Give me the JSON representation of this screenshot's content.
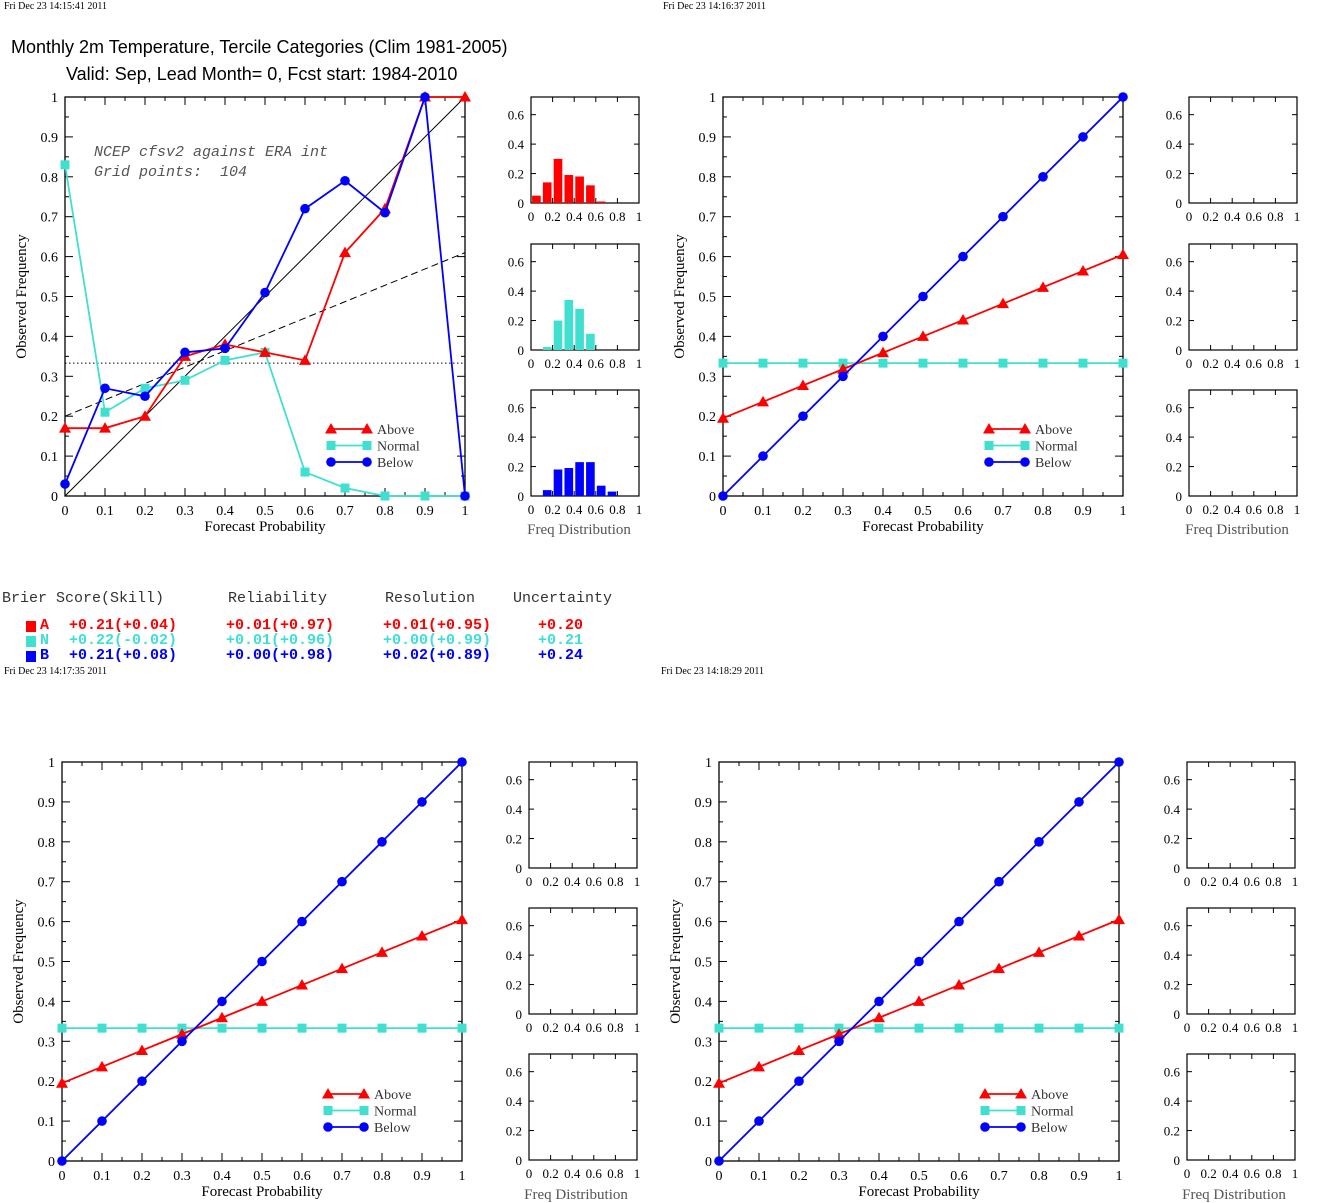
{
  "timestamps": [
    "Fri Dec 23 14:15:41 2011",
    "Fri Dec 23 14:16:37 2011",
    "Fri Dec 23 14:17:35 2011",
    "Fri Dec 23 14:18:29 2011"
  ],
  "title": {
    "line1": "Monthly 2m Temperature, Tercile Categories (Clim 1981-2005)",
    "line2": "Valid: Sep, Lead Month= 0, Fcst start: 1984-2010"
  },
  "annotation": {
    "line1": "NCEP cfsv2 against ERA int",
    "line2": "Grid points:  104"
  },
  "colors": {
    "above": "#ff0000",
    "normal": "#40e0d0",
    "below": "#0000ff"
  },
  "scores": {
    "headers": [
      "Brier Score(Skill)",
      "Reliability",
      "Resolution",
      "Uncertainty"
    ],
    "rows": [
      {
        "cat": "A",
        "brier": "+0.21(+0.04)",
        "reliability": "+0.01(+0.97)",
        "resolution": "+0.01(+0.95)",
        "uncertainty": "+0.20"
      },
      {
        "cat": "N",
        "brier": "+0.22(-0.02)",
        "reliability": "+0.01(+0.96)",
        "resolution": "+0.00(+0.99)",
        "uncertainty": "+0.21"
      },
      {
        "cat": "B",
        "brier": "+0.21(+0.08)",
        "reliability": "+0.00(+0.98)",
        "resolution": "+0.02(+0.89)",
        "uncertainty": "+0.24"
      }
    ]
  },
  "chart_data": [
    {
      "type": "line",
      "panel": "top-left",
      "xlabel": "Forecast Probability",
      "ylabel": "Observed Frequency",
      "xlim": [
        0,
        1
      ],
      "ylim": [
        0,
        1
      ],
      "xticks": [
        "0",
        "0.1",
        "0.2",
        "0.3",
        "0.4",
        "0.5",
        "0.6",
        "0.7",
        "0.8",
        "0.9",
        "1"
      ],
      "yticks": [
        "0",
        "0.1",
        "0.2",
        "0.3",
        "0.4",
        "0.5",
        "0.6",
        "0.7",
        "0.8",
        "0.9",
        "1"
      ],
      "legend": [
        "Above",
        "Normal",
        "Below"
      ],
      "legend_position": "bottom-right",
      "reference_lines": {
        "diagonal": [
          [
            0,
            0
          ],
          [
            1,
            1
          ]
        ],
        "climatology": 0.333,
        "no_skill": [
          [
            0,
            0.2
          ],
          [
            1,
            0.61
          ]
        ]
      },
      "x": [
        0,
        0.1,
        0.2,
        0.3,
        0.4,
        0.5,
        0.6,
        0.7,
        0.8,
        0.9,
        1
      ],
      "series": [
        {
          "name": "Above",
          "values": [
            0.17,
            0.17,
            0.2,
            0.35,
            0.38,
            0.36,
            0.34,
            0.61,
            0.72,
            1.0,
            1.0
          ]
        },
        {
          "name": "Normal",
          "values": [
            0.83,
            0.21,
            0.27,
            0.29,
            0.34,
            0.36,
            0.06,
            0.02,
            0.0,
            0.0,
            0.0
          ]
        },
        {
          "name": "Below",
          "values": [
            0.03,
            0.27,
            0.25,
            0.36,
            0.37,
            0.51,
            0.72,
            0.79,
            0.71,
            1.0,
            0.0
          ]
        }
      ],
      "histograms": {
        "xlabel": "Freq Distribution",
        "xticks": [
          "0",
          "0.2",
          "0.4",
          "0.6",
          "0.8",
          "1"
        ],
        "yticks": [
          "0",
          "0.2",
          "0.4",
          "0.6"
        ],
        "ylim": [
          0,
          0.72
        ],
        "bins": [
          0.05,
          0.15,
          0.25,
          0.35,
          0.45,
          0.55,
          0.65,
          0.75
        ],
        "above": [
          0.05,
          0.14,
          0.3,
          0.19,
          0.18,
          0.12,
          0.01,
          0.0
        ],
        "normal": [
          0.0,
          0.02,
          0.2,
          0.34,
          0.28,
          0.11,
          0.0,
          0.0
        ],
        "below": [
          0.0,
          0.04,
          0.18,
          0.19,
          0.23,
          0.23,
          0.07,
          0.03
        ]
      }
    },
    {
      "type": "line",
      "panel": "top-right",
      "xlabel": "Forecast Probability",
      "ylabel": "Observed Frequency",
      "xlim": [
        0,
        1
      ],
      "ylim": [
        0,
        1
      ],
      "xticks": [
        "0",
        "0.1",
        "0.2",
        "0.3",
        "0.4",
        "0.5",
        "0.6",
        "0.7",
        "0.8",
        "0.9",
        "1"
      ],
      "yticks": [
        "0",
        "0.1",
        "0.2",
        "0.3",
        "0.4",
        "0.5",
        "0.6",
        "0.7",
        "0.8",
        "0.9",
        "1"
      ],
      "legend": [
        "Above",
        "Normal",
        "Below"
      ],
      "legend_position": "bottom-right",
      "x": [
        0,
        0.1,
        0.2,
        0.3,
        0.4,
        0.5,
        0.6,
        0.7,
        0.8,
        0.9,
        1
      ],
      "series": [
        {
          "name": "Above",
          "values": [
            0.195,
            0.236,
            0.277,
            0.318,
            0.359,
            0.4,
            0.441,
            0.482,
            0.523,
            0.564,
            0.605
          ]
        },
        {
          "name": "Normal",
          "values": [
            0.333,
            0.333,
            0.333,
            0.333,
            0.333,
            0.333,
            0.333,
            0.333,
            0.333,
            0.333,
            0.333
          ]
        },
        {
          "name": "Below",
          "values": [
            0.0,
            0.1,
            0.2,
            0.3,
            0.4,
            0.5,
            0.6,
            0.7,
            0.8,
            0.9,
            1.0
          ]
        }
      ],
      "histograms": {
        "xlabel": "Freq Distribution",
        "xticks": [
          "0",
          "0.2",
          "0.4",
          "0.6",
          "0.8",
          "1"
        ],
        "yticks": [
          "0",
          "0.2",
          "0.4",
          "0.6"
        ],
        "ylim": [
          0,
          0.72
        ]
      }
    },
    {
      "type": "line",
      "panel": "bottom-left",
      "xlabel": "Forecast Probability",
      "ylabel": "Observed Frequency",
      "xlim": [
        0,
        1
      ],
      "ylim": [
        0,
        1
      ],
      "xticks": [
        "0",
        "0.1",
        "0.2",
        "0.3",
        "0.4",
        "0.5",
        "0.6",
        "0.7",
        "0.8",
        "0.9",
        "1"
      ],
      "yticks": [
        "0",
        "0.1",
        "0.2",
        "0.3",
        "0.4",
        "0.5",
        "0.6",
        "0.7",
        "0.8",
        "0.9",
        "1"
      ],
      "legend": [
        "Above",
        "Normal",
        "Below"
      ],
      "legend_position": "bottom-right",
      "x": [
        0,
        0.1,
        0.2,
        0.3,
        0.4,
        0.5,
        0.6,
        0.7,
        0.8,
        0.9,
        1
      ],
      "series": [
        {
          "name": "Above",
          "values": [
            0.195,
            0.236,
            0.277,
            0.318,
            0.359,
            0.4,
            0.441,
            0.482,
            0.523,
            0.564,
            0.605
          ]
        },
        {
          "name": "Normal",
          "values": [
            0.333,
            0.333,
            0.333,
            0.333,
            0.333,
            0.333,
            0.333,
            0.333,
            0.333,
            0.333,
            0.333
          ]
        },
        {
          "name": "Below",
          "values": [
            0.0,
            0.1,
            0.2,
            0.3,
            0.4,
            0.5,
            0.6,
            0.7,
            0.8,
            0.9,
            1.0
          ]
        }
      ],
      "histograms": {
        "xlabel": "Freq Distribution",
        "xticks": [
          "0",
          "0.2",
          "0.4",
          "0.6",
          "0.8",
          "1"
        ],
        "yticks": [
          "0",
          "0.2",
          "0.4",
          "0.6"
        ],
        "ylim": [
          0,
          0.72
        ]
      }
    },
    {
      "type": "line",
      "panel": "bottom-right",
      "xlabel": "Forecast Probability",
      "ylabel": "Observed Frequency",
      "xlim": [
        0,
        1
      ],
      "ylim": [
        0,
        1
      ],
      "xticks": [
        "0",
        "0.1",
        "0.2",
        "0.3",
        "0.4",
        "0.5",
        "0.6",
        "0.7",
        "0.8",
        "0.9",
        "1"
      ],
      "yticks": [
        "0",
        "0.1",
        "0.2",
        "0.3",
        "0.4",
        "0.5",
        "0.6",
        "0.7",
        "0.8",
        "0.9",
        "1"
      ],
      "legend": [
        "Above",
        "Normal",
        "Below"
      ],
      "legend_position": "bottom-right",
      "x": [
        0,
        0.1,
        0.2,
        0.3,
        0.4,
        0.5,
        0.6,
        0.7,
        0.8,
        0.9,
        1
      ],
      "series": [
        {
          "name": "Above",
          "values": [
            0.195,
            0.236,
            0.277,
            0.318,
            0.359,
            0.4,
            0.441,
            0.482,
            0.523,
            0.564,
            0.605
          ]
        },
        {
          "name": "Normal",
          "values": [
            0.333,
            0.333,
            0.333,
            0.333,
            0.333,
            0.333,
            0.333,
            0.333,
            0.333,
            0.333,
            0.333
          ]
        },
        {
          "name": "Below",
          "values": [
            0.0,
            0.1,
            0.2,
            0.3,
            0.4,
            0.5,
            0.6,
            0.7,
            0.8,
            0.9,
            1.0
          ]
        }
      ],
      "histograms": {
        "xlabel": "Freq Distribution",
        "xticks": [
          "0",
          "0.2",
          "0.4",
          "0.6",
          "0.8",
          "1"
        ],
        "yticks": [
          "0",
          "0.2",
          "0.4",
          "0.6"
        ],
        "ylim": [
          0,
          0.72
        ]
      }
    }
  ]
}
